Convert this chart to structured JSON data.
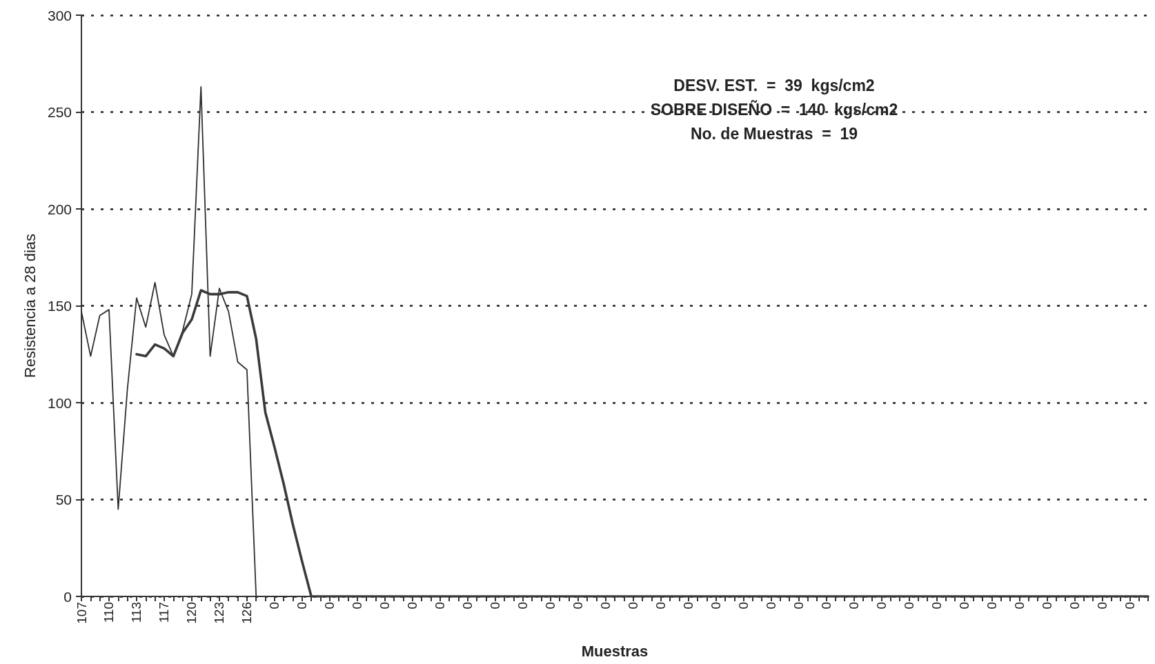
{
  "chart_data": {
    "type": "line",
    "xlabel": "Muestras",
    "ylabel": "Resistencia a 28 dias",
    "categories": [
      "107",
      null,
      null,
      "110",
      null,
      null,
      "113",
      null,
      null,
      "117",
      null,
      null,
      "120",
      null,
      null,
      "123",
      null,
      null,
      "126",
      null,
      null,
      "0",
      null,
      null,
      "0",
      null,
      null,
      "0",
      null,
      null,
      "0",
      null,
      null,
      "0",
      null,
      null,
      "0",
      null,
      null,
      "0",
      null,
      null,
      "0",
      null,
      null,
      "0",
      null,
      null,
      "0",
      null,
      null,
      "0",
      null,
      null,
      "0",
      null,
      null,
      "0",
      null,
      null,
      "0",
      null,
      null,
      "0",
      null,
      null,
      "0",
      null,
      null,
      "0",
      null,
      null,
      "0",
      null,
      null,
      "0",
      null,
      null,
      "0",
      null,
      null,
      "0",
      null,
      null,
      "0",
      null,
      null,
      "0",
      null,
      null,
      "0",
      null,
      null,
      "0",
      null,
      null,
      "0",
      null,
      null,
      "0",
      null,
      null,
      "0",
      null,
      null,
      "0",
      null,
      null,
      "0",
      null,
      null,
      "0",
      null,
      null,
      "0",
      null,
      null
    ],
    "series": [
      {
        "color": "#2e2e2e",
        "values": [
          147,
          124,
          145,
          148,
          45,
          107,
          154,
          139,
          162,
          135,
          124,
          137,
          156,
          263,
          124,
          159,
          147,
          121,
          117,
          0,
          0,
          0,
          0,
          0,
          0,
          0,
          0,
          0,
          0,
          0,
          0,
          0,
          0,
          0,
          0,
          0,
          0,
          0,
          0,
          0,
          0,
          0,
          0,
          0,
          0,
          0,
          0,
          0,
          0,
          0,
          0,
          0,
          0,
          0,
          0,
          0,
          0,
          0,
          0,
          0,
          0,
          0,
          0,
          0,
          0,
          0,
          0,
          0,
          0,
          0,
          0,
          0,
          0,
          0,
          0,
          0,
          0,
          0,
          0,
          0,
          0,
          0,
          0,
          0,
          0,
          0,
          0,
          0,
          0,
          0,
          0,
          0,
          0,
          0,
          0,
          0,
          0,
          0,
          0,
          0,
          0,
          0,
          0,
          0,
          0,
          0,
          0,
          0,
          0,
          0,
          0,
          0,
          0,
          0,
          0,
          0,
          0
        ]
      },
      {
        "color": "#3a3a3a",
        "values": [
          null,
          null,
          null,
          null,
          null,
          null,
          125,
          124,
          130,
          128,
          124,
          136,
          143,
          158,
          156,
          156,
          157,
          157,
          155,
          133,
          95,
          77,
          58,
          37,
          18,
          0,
          0,
          0,
          0,
          0,
          0,
          0,
          0,
          0,
          0,
          0,
          0,
          0,
          0,
          0,
          0,
          0,
          0,
          0,
          0,
          0,
          0,
          0,
          0,
          0,
          0,
          0,
          0,
          0,
          0,
          0,
          0,
          0,
          0,
          0,
          0,
          0,
          0,
          0,
          0,
          0,
          0,
          0,
          0,
          0,
          0,
          0,
          0,
          0,
          0,
          0,
          0,
          0,
          0,
          0,
          0,
          0,
          0,
          0,
          0,
          0,
          0,
          0,
          0,
          0,
          0,
          0,
          0,
          0,
          0,
          0,
          0,
          0,
          0,
          0,
          0,
          0,
          0,
          0,
          0,
          0,
          0,
          0,
          0,
          0,
          0,
          0,
          0,
          0,
          0,
          0,
          0
        ]
      }
    ],
    "ylim": [
      0,
      300
    ],
    "yticks": [
      0,
      50,
      100,
      150,
      200,
      250,
      300
    ],
    "grid": "y",
    "marker": "none",
    "line_style": "solid",
    "annotations": [
      "DESV. EST.  =  39  kgs/cm2",
      "SOBRE DISEÑO  =  140  kgs/cm2",
      "No. de Muestras  =  19"
    ]
  }
}
